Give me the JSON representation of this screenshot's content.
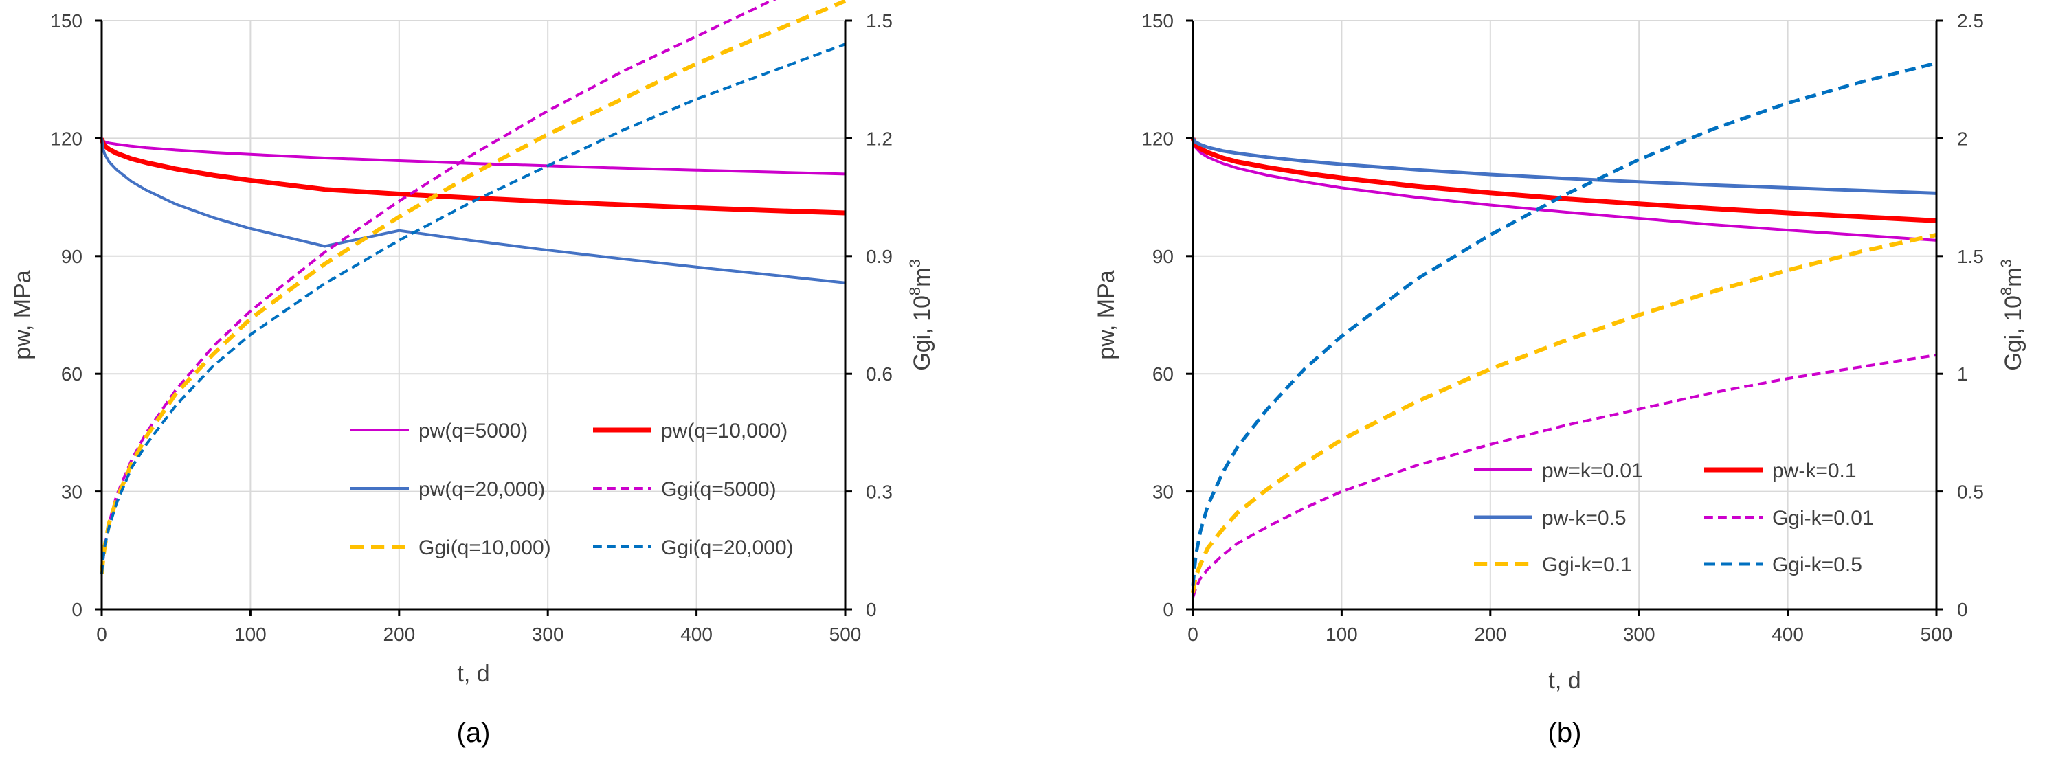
{
  "chart_data": [
    {
      "type": "line",
      "panel_label": "(a)",
      "xlabel": "t, d",
      "ylabel": "pw, MPa",
      "y2label_main": "Ggi, 10",
      "y2label_sup": "8",
      "y2label_unit": "m",
      "y2label_sup2": "3",
      "xlim": [
        0,
        500
      ],
      "ylim": [
        0,
        150
      ],
      "y2lim": [
        0,
        1.5
      ],
      "x_ticks": [
        "0",
        "100",
        "200",
        "300",
        "400",
        "500"
      ],
      "y_ticks": [
        "0",
        "30",
        "60",
        "90",
        "120",
        "150"
      ],
      "y2_ticks": [
        "0",
        "0.3",
        "0.6",
        "0.9",
        "1.2",
        "1.5"
      ],
      "grid": true,
      "legend_position": "inside-bottom-right",
      "x": [
        0,
        1,
        2,
        5,
        10,
        20,
        30,
        50,
        75,
        100,
        150,
        200,
        250,
        300,
        350,
        400,
        450,
        500
      ],
      "series": [
        {
          "name": "pw(q=5000)",
          "axis": "left",
          "color": "#CC00CC",
          "dash": "solid",
          "width": 4,
          "values": [
            120,
            119.3,
            119.1,
            118.8,
            118.5,
            118.0,
            117.6,
            117.0,
            116.4,
            115.9,
            115.0,
            114.3,
            113.6,
            113.0,
            112.4,
            111.9,
            111.4,
            110.9
          ]
        },
        {
          "name": "pw(q=10,000)",
          "axis": "left",
          "color": "#FF0000",
          "dash": "solid",
          "width": 7,
          "values": [
            120,
            118.6,
            118.1,
            117.2,
            116.2,
            114.8,
            113.8,
            112.2,
            110.6,
            109.3,
            107.0,
            105.8,
            104.8,
            103.9,
            103.1,
            102.3,
            101.6,
            101.0
          ]
        },
        {
          "name": "pw(q=20,000)",
          "axis": "left",
          "color": "#4472C4",
          "dash": "solid",
          "width": 4,
          "values": [
            120,
            117.2,
            116.0,
            114.0,
            112.0,
            109.0,
            106.8,
            103.2,
            99.8,
            97.0,
            92.5,
            96.5,
            93.9,
            91.5,
            89.3,
            87.2,
            85.2,
            83.2
          ]
        },
        {
          "name": "Ggi(q=5000)",
          "axis": "right",
          "color": "#CC00CC",
          "dash": "dashed",
          "width": 4,
          "values": [
            0.09,
            0.13,
            0.16,
            0.22,
            0.29,
            0.38,
            0.45,
            0.56,
            0.67,
            0.76,
            0.91,
            1.04,
            1.16,
            1.27,
            1.37,
            1.46,
            1.55,
            1.63
          ]
        },
        {
          "name": "Ggi(q=10,000)",
          "axis": "right",
          "color": "#FFC000",
          "dash": "dashed",
          "width": 6,
          "values": [
            0.09,
            0.13,
            0.16,
            0.22,
            0.28,
            0.37,
            0.44,
            0.55,
            0.65,
            0.74,
            0.88,
            1.0,
            1.11,
            1.21,
            1.3,
            1.39,
            1.47,
            1.55
          ]
        },
        {
          "name": "Ggi(q=20,000)",
          "axis": "right",
          "color": "#0070C0",
          "dash": "dashed",
          "width": 4,
          "values": [
            0.09,
            0.13,
            0.16,
            0.21,
            0.27,
            0.36,
            0.42,
            0.52,
            0.62,
            0.7,
            0.83,
            0.94,
            1.04,
            1.13,
            1.22,
            1.3,
            1.37,
            1.44
          ]
        }
      ]
    },
    {
      "type": "line",
      "panel_label": "(b)",
      "xlabel": "t, d",
      "ylabel": "pw, MPa",
      "y2label_main": "Ggi, 10",
      "y2label_sup": "8",
      "y2label_unit": "m",
      "y2label_sup2": "3",
      "xlim": [
        0,
        500
      ],
      "ylim": [
        0,
        150
      ],
      "y2lim": [
        0,
        2.5
      ],
      "x_ticks": [
        "0",
        "100",
        "200",
        "300",
        "400",
        "500"
      ],
      "y_ticks": [
        "0",
        "30",
        "60",
        "90",
        "120",
        "150"
      ],
      "y2_ticks": [
        "0",
        "0.5",
        "1",
        "1.5",
        "2",
        "2.5"
      ],
      "grid": true,
      "legend_position": "inside-bottom-right",
      "x": [
        0,
        1,
        2,
        5,
        10,
        20,
        30,
        50,
        75,
        100,
        150,
        200,
        250,
        300,
        350,
        400,
        450,
        500
      ],
      "series": [
        {
          "name": "pw=k=0.01",
          "axis": "left",
          "color": "#CC00CC",
          "dash": "solid",
          "width": 4,
          "values": [
            120,
            118.2,
            117.6,
            116.4,
            115.2,
            113.6,
            112.4,
            110.6,
            108.9,
            107.4,
            105.0,
            103.0,
            101.2,
            99.6,
            98.0,
            96.6,
            95.3,
            94.0
          ]
        },
        {
          "name": "pw-k=0.1",
          "axis": "left",
          "color": "#FF0000",
          "dash": "solid",
          "width": 7,
          "values": [
            120,
            118.8,
            118.3,
            117.4,
            116.4,
            115.0,
            114.0,
            112.6,
            111.1,
            109.9,
            107.8,
            106.1,
            104.6,
            103.3,
            102.1,
            101.0,
            100.0,
            99.0
          ]
        },
        {
          "name": "pw-k=0.5",
          "axis": "left",
          "color": "#4472C4",
          "dash": "solid",
          "width": 5,
          "values": [
            120,
            119.3,
            119.0,
            118.4,
            117.7,
            116.8,
            116.2,
            115.2,
            114.2,
            113.4,
            112.0,
            110.8,
            109.8,
            108.9,
            108.1,
            107.4,
            106.7,
            106.0
          ]
        },
        {
          "name": "Ggi-k=0.01",
          "axis": "right",
          "color": "#CC00CC",
          "dash": "dashed",
          "width": 4,
          "values": [
            0.05,
            0.07,
            0.09,
            0.13,
            0.17,
            0.23,
            0.28,
            0.35,
            0.43,
            0.5,
            0.61,
            0.7,
            0.78,
            0.85,
            0.92,
            0.98,
            1.03,
            1.08
          ]
        },
        {
          "name": "Ggi-k=0.1",
          "axis": "right",
          "color": "#FFC000",
          "dash": "dashed",
          "width": 6,
          "values": [
            0.07,
            0.11,
            0.14,
            0.19,
            0.26,
            0.34,
            0.41,
            0.51,
            0.62,
            0.72,
            0.88,
            1.02,
            1.14,
            1.25,
            1.35,
            1.44,
            1.52,
            1.59
          ]
        },
        {
          "name": "Ggi-k=0.5",
          "axis": "right",
          "color": "#0070C0",
          "dash": "dashed",
          "width": 5,
          "values": [
            0.1,
            0.17,
            0.23,
            0.33,
            0.44,
            0.58,
            0.69,
            0.85,
            1.02,
            1.16,
            1.4,
            1.59,
            1.76,
            1.91,
            2.04,
            2.15,
            2.24,
            2.32
          ]
        }
      ]
    }
  ]
}
